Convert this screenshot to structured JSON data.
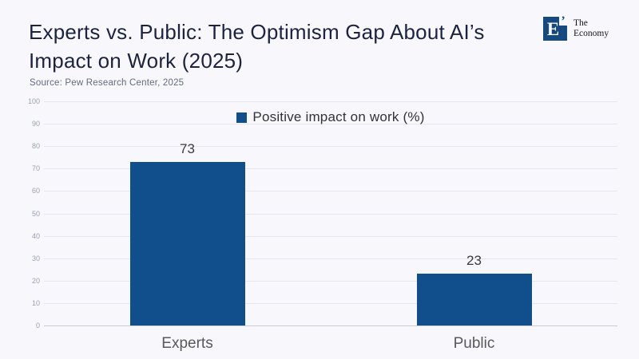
{
  "header": {
    "title": "Experts vs. Public: The Optimism Gap About AI’s Impact on Work (2025)",
    "source": "Source: Pew Research Center, 2025",
    "logo": {
      "letter": "E",
      "mark": "’",
      "name_line1": "The",
      "name_line2": "Economy"
    }
  },
  "colors": {
    "background": "#f8f8fc",
    "bar": "#114e8c",
    "title": "#1b2340",
    "grid": "#e4e7f0",
    "zero_line": "#c9ccd6",
    "tick_label": "#9ba1af",
    "value_label": "#3b3b3b",
    "category_label": "#595959",
    "legend_text": "#333333",
    "logo_square": "#15497f"
  },
  "chart_data": {
    "type": "bar",
    "categories": [
      "Experts",
      "Public"
    ],
    "values": [
      73,
      23
    ],
    "title": "",
    "xlabel": "",
    "ylabel": "",
    "ylim": [
      0,
      100
    ],
    "ytick_step": 10,
    "grid": true,
    "legend": "Positive impact on work (%)",
    "legend_position": "top-center",
    "bar_color": "#114e8c"
  }
}
